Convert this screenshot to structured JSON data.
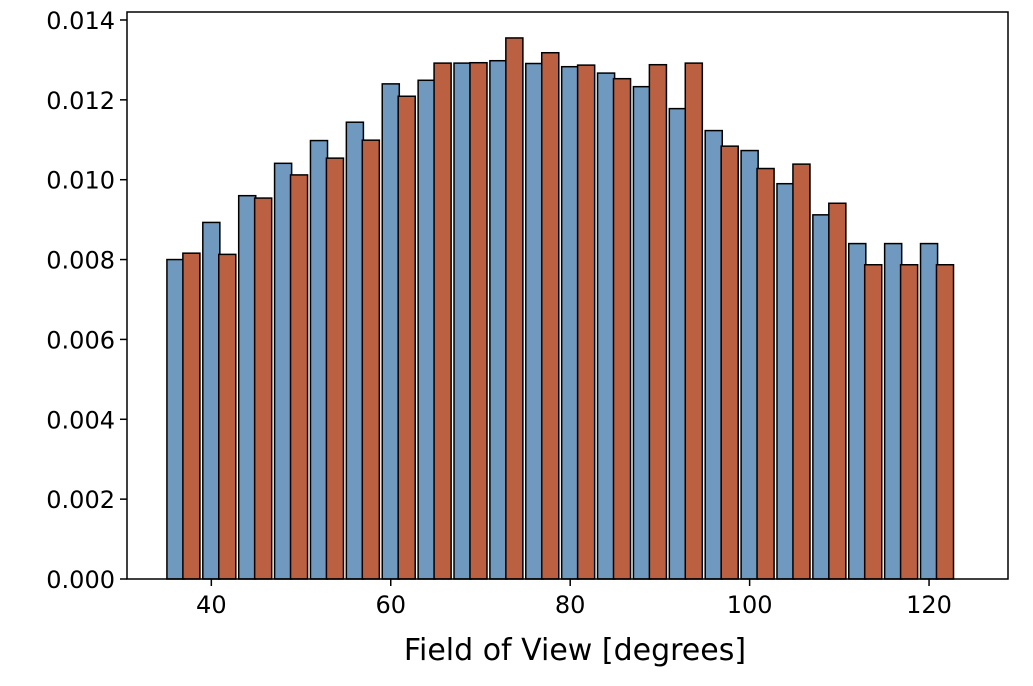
{
  "chart_data": {
    "type": "bar",
    "title": "",
    "xlabel": "Field of View [degrees]",
    "ylabel": "",
    "xlim": [
      30.6,
      128.8
    ],
    "ylim": [
      0,
      0.0142
    ],
    "x_ticks": [
      40,
      60,
      80,
      100,
      120
    ],
    "x_tick_labels": [
      "40",
      "60",
      "80",
      "100",
      "120"
    ],
    "y_ticks": [
      0.0,
      0.002,
      0.004,
      0.006,
      0.008,
      0.01,
      0.012,
      0.014
    ],
    "y_tick_labels": [
      "0.000",
      "0.002",
      "0.004",
      "0.006",
      "0.008",
      "0.010",
      "0.012",
      "0.014"
    ],
    "grid": false,
    "legend": null,
    "bin_centers": [
      37,
      41,
      45,
      49,
      53,
      57,
      61,
      65,
      69,
      73,
      77,
      81,
      85,
      89,
      93,
      97,
      101,
      105,
      109,
      113,
      117,
      121
    ],
    "series": [
      {
        "color": "#7099bf",
        "values": [
          0.008,
          0.00893,
          0.0096,
          0.01041,
          0.01098,
          0.01144,
          0.0124,
          0.01249,
          0.01292,
          0.01298,
          0.01291,
          0.01283,
          0.01267,
          0.01233,
          0.01178,
          0.01123,
          0.01073,
          0.0099,
          0.00912,
          0.0084,
          0.0084,
          0.0084
        ]
      },
      {
        "color": "#bb6041",
        "values": [
          0.00816,
          0.00813,
          0.00954,
          0.01012,
          0.01054,
          0.01099,
          0.01209,
          0.01292,
          0.01293,
          0.01355,
          0.01318,
          0.01287,
          0.01253,
          0.01288,
          0.01292,
          0.01084,
          0.01028,
          0.01039,
          0.00941,
          0.00787,
          0.00787,
          0.00787
        ]
      }
    ]
  }
}
